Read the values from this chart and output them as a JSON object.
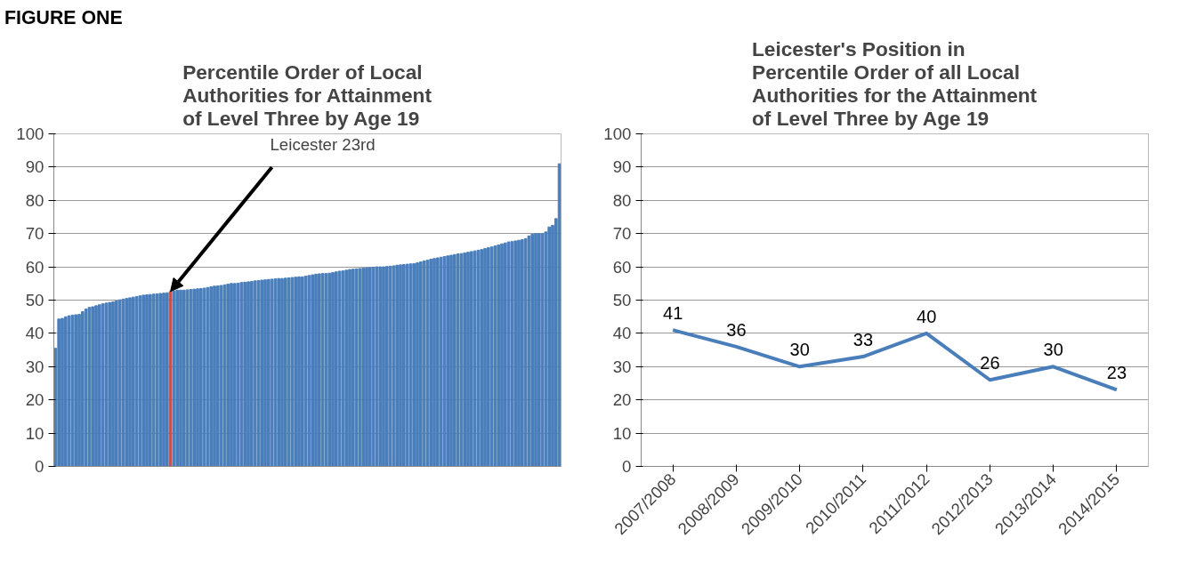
{
  "chart_data": [
    {
      "type": "bar",
      "title": "Percentile Order of Local Authorities for Attainment of Level Three by Age 19",
      "annotations": [
        "FIGURE ONE",
        "Leicester 23rd"
      ],
      "categories": [
        null,
        null,
        null,
        null,
        null,
        null,
        null,
        null,
        null,
        null,
        null,
        null,
        null,
        null,
        null,
        null,
        null,
        null,
        null,
        null,
        null,
        null,
        null,
        null,
        null,
        null,
        null,
        null,
        null,
        null,
        null,
        null,
        null,
        null,
        null,
        null,
        null,
        null,
        null,
        null,
        null,
        null,
        null,
        null,
        null,
        null,
        null,
        null,
        null,
        null,
        null,
        null,
        null,
        null,
        null,
        null,
        null,
        null,
        null,
        null,
        null,
        null,
        null,
        null,
        null,
        null,
        null,
        null,
        null,
        null,
        null,
        null,
        null,
        null,
        null,
        null,
        null,
        null,
        null,
        null,
        null,
        null,
        null,
        null,
        null,
        null,
        null,
        null,
        null,
        null,
        null,
        null,
        null,
        null,
        null,
        null,
        null,
        null,
        null,
        null,
        null,
        null,
        null,
        null,
        null,
        null,
        null,
        null,
        null,
        null,
        null,
        null,
        null,
        null,
        null,
        null,
        null,
        null,
        null,
        null,
        null,
        null,
        null,
        null,
        null,
        null,
        null,
        null,
        null,
        null,
        null,
        null,
        null,
        null,
        null,
        null,
        null,
        null,
        null,
        null,
        null,
        null,
        null,
        null,
        null,
        null,
        null,
        null,
        null,
        null
      ],
      "values": [
        35.5,
        44.3,
        44.5,
        45.0,
        45.3,
        45.5,
        45.6,
        45.7,
        46.5,
        47.3,
        47.8,
        48.0,
        48.3,
        48.6,
        48.9,
        49.1,
        49.3,
        49.5,
        49.8,
        50.1,
        50.3,
        50.5,
        50.7,
        50.9,
        51.1,
        51.3,
        51.5,
        51.6,
        51.7,
        51.8,
        51.9,
        52.0,
        52.1,
        52.2,
        52.6,
        52.8,
        53.0,
        53.0,
        53.0,
        53.1,
        53.2,
        53.3,
        53.4,
        53.5,
        53.6,
        53.8,
        54.0,
        54.2,
        54.3,
        54.4,
        54.6,
        54.8,
        55.0,
        55.0,
        55.1,
        55.3,
        55.4,
        55.5,
        55.6,
        55.8,
        55.9,
        56.0,
        56.1,
        56.2,
        56.3,
        56.4,
        56.5,
        56.5,
        56.6,
        56.7,
        56.8,
        56.9,
        57.0,
        57.0,
        57.2,
        57.4,
        57.6,
        57.8,
        57.9,
        58.0,
        58.0,
        58.1,
        58.3,
        58.5,
        58.7,
        58.8,
        59.0,
        59.2,
        59.3,
        59.4,
        59.5,
        59.6,
        59.7,
        59.8,
        59.9,
        60.0,
        60.0,
        60.0,
        60.1,
        60.2,
        60.3,
        60.5,
        60.6,
        60.7,
        60.8,
        60.9,
        61.0,
        61.2,
        61.5,
        61.8,
        62.0,
        62.3,
        62.5,
        62.7,
        62.9,
        63.1,
        63.3,
        63.5,
        63.7,
        63.9,
        64.0,
        64.2,
        64.4,
        64.6,
        64.8,
        65.0,
        65.2,
        65.5,
        65.8,
        66.0,
        66.3,
        66.6,
        66.9,
        67.2,
        67.5,
        67.6,
        67.8,
        68.0,
        68.2,
        68.5,
        69.3,
        69.8,
        70.0,
        70.0,
        70.0,
        70.5,
        72.0,
        72.5,
        74.5,
        91.0
      ],
      "colors": [
        "#4a7ebb",
        "#4a7ebb",
        "#4a7ebb",
        "#4a7ebb",
        "#4a7ebb",
        "#4a7ebb",
        "#4a7ebb",
        "#4a7ebb",
        "#4a7ebb",
        "#4a7ebb",
        "#4a7ebb",
        "#4a7ebb",
        "#4a7ebb",
        "#4a7ebb",
        "#4a7ebb",
        "#4a7ebb",
        "#4a7ebb",
        "#4a7ebb",
        "#4a7ebb",
        "#4a7ebb",
        "#4a7ebb",
        "#4a7ebb",
        "#4a7ebb",
        "#4a7ebb",
        "#4a7ebb",
        "#4a7ebb",
        "#4a7ebb",
        "#4a7ebb",
        "#4a7ebb",
        "#4a7ebb",
        "#4a7ebb",
        "#4a7ebb",
        "#4a7ebb",
        "#4a7ebb",
        "#c0504d",
        "#4a7ebb",
        "#4a7ebb",
        "#4a7ebb",
        "#4a7ebb",
        "#4a7ebb",
        "#4a7ebb",
        "#4a7ebb",
        "#4a7ebb",
        "#4a7ebb",
        "#4a7ebb",
        "#4a7ebb",
        "#4a7ebb",
        "#4a7ebb",
        "#4a7ebb",
        "#4a7ebb",
        "#4a7ebb",
        "#4a7ebb",
        "#4a7ebb",
        "#4a7ebb",
        "#4a7ebb",
        "#4a7ebb",
        "#4a7ebb",
        "#4a7ebb",
        "#4a7ebb",
        "#4a7ebb",
        "#4a7ebb",
        "#4a7ebb",
        "#4a7ebb",
        "#4a7ebb",
        "#4a7ebb",
        "#4a7ebb",
        "#4a7ebb",
        "#4a7ebb",
        "#4a7ebb",
        "#4a7ebb",
        "#4a7ebb",
        "#4a7ebb",
        "#4a7ebb",
        "#4a7ebb",
        "#4a7ebb",
        "#4a7ebb",
        "#4a7ebb",
        "#4a7ebb",
        "#4a7ebb",
        "#4a7ebb",
        "#4a7ebb",
        "#4a7ebb",
        "#4a7ebb",
        "#4a7ebb",
        "#4a7ebb",
        "#4a7ebb",
        "#4a7ebb",
        "#4a7ebb",
        "#4a7ebb",
        "#4a7ebb",
        "#4a7ebb",
        "#4a7ebb",
        "#4a7ebb",
        "#4a7ebb",
        "#4a7ebb",
        "#4a7ebb",
        "#4a7ebb",
        "#4a7ebb",
        "#4a7ebb",
        "#4a7ebb",
        "#4a7ebb",
        "#4a7ebb",
        "#4a7ebb",
        "#4a7ebb",
        "#4a7ebb",
        "#4a7ebb",
        "#4a7ebb",
        "#4a7ebb",
        "#4a7ebb",
        "#4a7ebb",
        "#4a7ebb",
        "#4a7ebb",
        "#4a7ebb",
        "#4a7ebb",
        "#4a7ebb",
        "#4a7ebb",
        "#4a7ebb",
        "#4a7ebb",
        "#4a7ebb",
        "#4a7ebb",
        "#4a7ebb",
        "#4a7ebb",
        "#4a7ebb",
        "#4a7ebb",
        "#4a7ebb",
        "#4a7ebb",
        "#4a7ebb",
        "#4a7ebb",
        "#4a7ebb",
        "#4a7ebb",
        "#4a7ebb",
        "#4a7ebb",
        "#4a7ebb",
        "#4a7ebb",
        "#4a7ebb",
        "#4a7ebb",
        "#4a7ebb",
        "#4a7ebb",
        "#4a7ebb",
        "#4a7ebb",
        "#4a7ebb",
        "#4a7ebb",
        "#4a7ebb",
        "#4a7ebb",
        "#4a7ebb",
        "#4a7ebb",
        "#4a7ebb",
        "#4a7ebb",
        "#4a7ebb",
        "#4a7ebb"
      ],
      "ylim": [
        0,
        100
      ],
      "yticks": [
        0,
        10,
        20,
        30,
        40,
        50,
        60,
        70,
        80,
        90,
        100
      ],
      "grid": "y",
      "tick_labels": "y"
    },
    {
      "type": "line",
      "title": "Leicester's  Position in Percentile Order of all Local Authorities for the Attainment of Level Three by Age 19",
      "categories": [
        "2007/2008",
        "2008/2009",
        "2009/2010",
        "2010/2011",
        "2011/2012",
        "2012/2013",
        "2013/2014",
        "2014/2015"
      ],
      "values": [
        41,
        36,
        30,
        33,
        40,
        26,
        30,
        23
      ],
      "color": "#4a7ebb",
      "data_labels": true,
      "ylim": [
        0,
        100
      ],
      "yticks": [
        0,
        10,
        20,
        30,
        40,
        50,
        60,
        70,
        80,
        90,
        100
      ],
      "grid": "y"
    }
  ]
}
